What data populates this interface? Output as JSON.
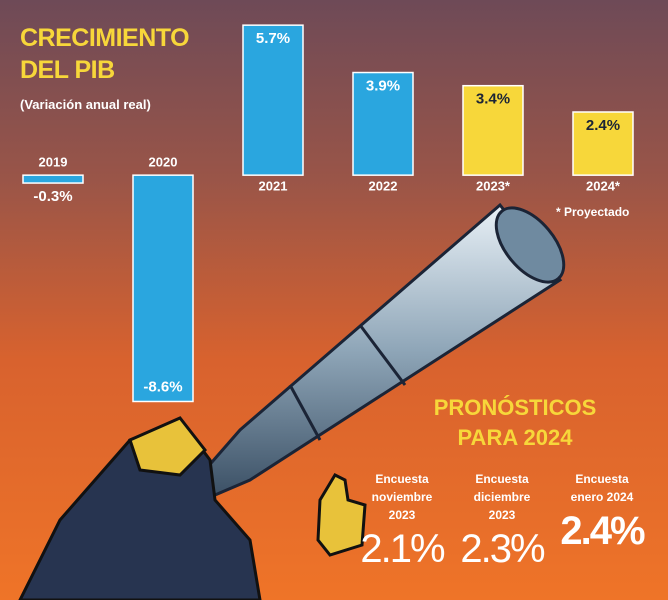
{
  "chart_data": {
    "type": "bar",
    "title": "CRECIMIENTO DEL PIB",
    "subtitle": "(Variación anual real)",
    "categories": [
      "2019",
      "2020",
      "2021",
      "2022",
      "2023*",
      "2024*"
    ],
    "values": [
      -0.3,
      -8.6,
      5.7,
      3.9,
      3.4,
      2.4
    ],
    "value_labels": [
      "-0.3%",
      "-8.6%",
      "5.7%",
      "3.9%",
      "3.4%",
      "2.4%"
    ],
    "colors": [
      "#2aa6df",
      "#2aa6df",
      "#2aa6df",
      "#2aa6df",
      "#f7d73a",
      "#f7d73a"
    ],
    "ylim": [
      -9,
      6.2
    ],
    "note": "* Proyectado"
  },
  "forecast": {
    "title": "PRONÓSTICOS PARA 2024",
    "items": [
      {
        "label": "Encuesta noviembre 2023",
        "value": "2.1%"
      },
      {
        "label": "Encuesta diciembre 2023",
        "value": "2.3%"
      },
      {
        "label": "Encuesta enero 2024",
        "value": "2.4%"
      }
    ]
  }
}
